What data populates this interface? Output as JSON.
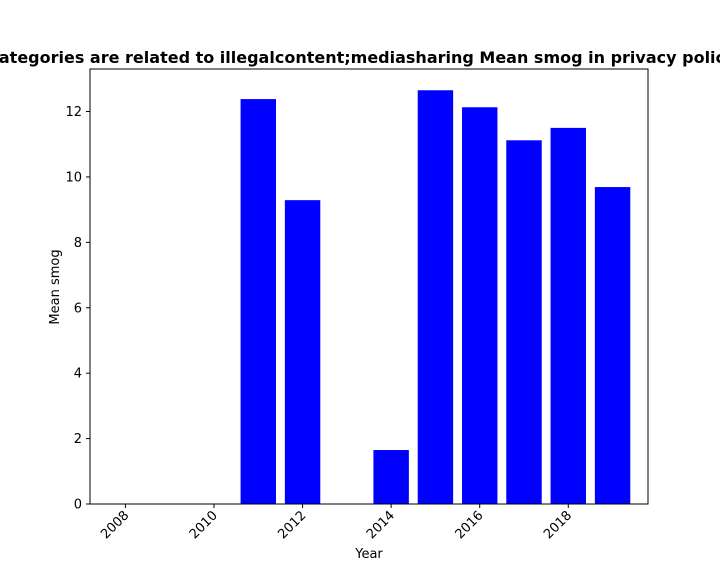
{
  "chart_data": {
    "type": "bar",
    "title": "Categories are related to illegalcontent;mediasharing Mean smog in privacy policies",
    "xlabel": "Year",
    "ylabel": "Mean smog",
    "x": [
      2011,
      2012,
      2014,
      2015,
      2016,
      2017,
      2018,
      2019
    ],
    "values": [
      12.38,
      9.29,
      1.65,
      12.65,
      12.13,
      11.12,
      11.5,
      9.69
    ],
    "xlim": [
      2007.2,
      2019.8
    ],
    "ylim": [
      0,
      13.3
    ],
    "xticks": [
      "2008",
      "2010",
      "2012",
      "2014",
      "2016",
      "2018"
    ],
    "yticks": [
      "0",
      "2",
      "4",
      "6",
      "8",
      "10",
      "12"
    ],
    "bar_color": "#0000ff",
    "grid": false,
    "legend": "none"
  }
}
